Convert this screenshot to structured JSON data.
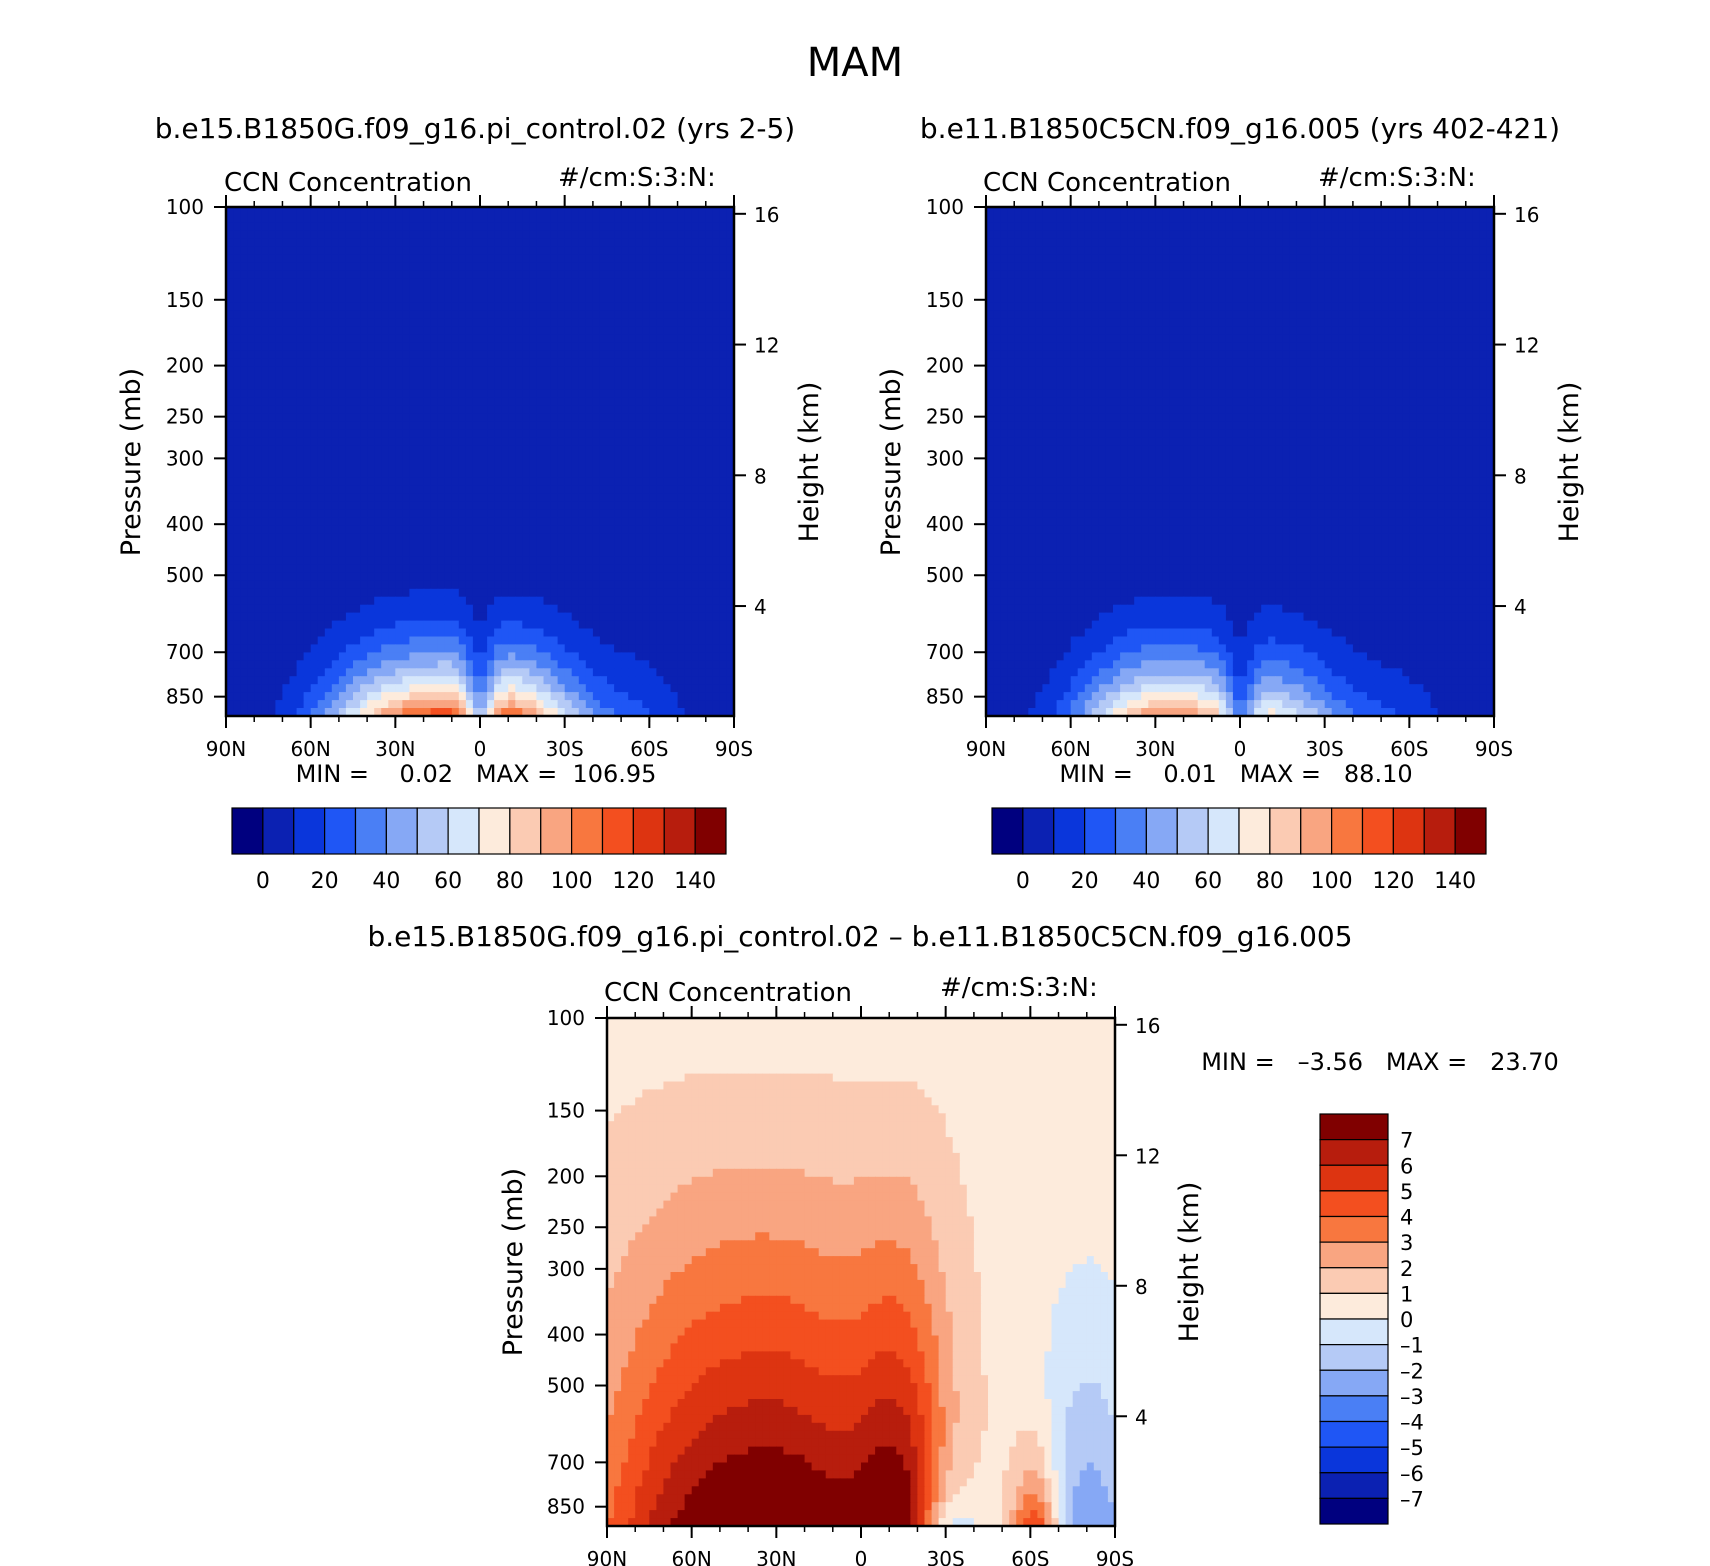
{
  "figure": {
    "title": "MAM"
  },
  "palette": {
    "diverging": [
      "#00007f",
      "#0b21b2",
      "#0a36db",
      "#1f56f5",
      "#4a7ff5",
      "#86a8f5",
      "#b5caf6",
      "#d6e7fb",
      "#fdebdc",
      "#fbcbb3",
      "#f9a581",
      "#f8773f",
      "#f34f1f",
      "#dd3411",
      "#b71d0d",
      "#800000"
    ]
  },
  "chart_data": [
    {
      "id": "left",
      "type": "contour",
      "run_title": "b.e15.B1850G.f09_g16.pi_control.02 (yrs 2-5)",
      "left_label": "CCN Concentration",
      "right_label": "#/cm:S:3:N:",
      "xlabel": "",
      "ylabel": "Pressure (mb)",
      "y2label": "Height (km)",
      "x_ticks": [
        "90N",
        "60N",
        "30N",
        "0",
        "30S",
        "60S",
        "90S"
      ],
      "y_ticks": [
        "100",
        "150",
        "200",
        "250",
        "300",
        "400",
        "500",
        "700",
        "850"
      ],
      "y2_ticks": [
        "16",
        "12",
        "8",
        "4"
      ],
      "ylim": [
        100,
        925
      ],
      "stats_text": "MIN =    0.02   MAX =  106.95",
      "min": 0.02,
      "max": 106.95,
      "colorbar": {
        "orientation": "horizontal",
        "labels": [
          "0",
          "20",
          "40",
          "60",
          "80",
          "100",
          "120",
          "140"
        ]
      },
      "field_profile": {
        "description": "low values aloft; maxima near 10N surface ~107",
        "peak": 106.95
      }
    },
    {
      "id": "right",
      "type": "contour",
      "run_title": "b.e11.B1850C5CN.f09_g16.005 (yrs 402-421)",
      "left_label": "CCN Concentration",
      "right_label": "#/cm:S:3:N:",
      "xlabel": "",
      "ylabel": "Pressure (mb)",
      "y2label": "Height (km)",
      "x_ticks": [
        "90N",
        "60N",
        "30N",
        "0",
        "30S",
        "60S",
        "90S"
      ],
      "y_ticks": [
        "100",
        "150",
        "200",
        "250",
        "300",
        "400",
        "500",
        "700",
        "850"
      ],
      "y2_ticks": [
        "16",
        "12",
        "8",
        "4"
      ],
      "ylim": [
        100,
        925
      ],
      "stats_text": "MIN =    0.01   MAX =   88.10",
      "min": 0.01,
      "max": 88.1,
      "colorbar": {
        "orientation": "horizontal",
        "labels": [
          "0",
          "20",
          "40",
          "60",
          "80",
          "100",
          "120",
          "140"
        ]
      },
      "field_profile": {
        "description": "low values aloft; maxima near 20N surface ~88",
        "peak": 88.1
      }
    },
    {
      "id": "diff",
      "type": "contour",
      "run_title": "b.e15.B1850G.f09_g16.pi_control.02 – b.e11.B1850C5CN.f09_g16.005",
      "left_label": "CCN Concentration",
      "right_label": "#/cm:S:3:N:",
      "xlabel": "",
      "ylabel": "Pressure (mb)",
      "y2label": "Height (km)",
      "x_ticks": [
        "90N",
        "60N",
        "30N",
        "0",
        "30S",
        "60S",
        "90S"
      ],
      "y_ticks": [
        "100",
        "150",
        "200",
        "250",
        "300",
        "400",
        "500",
        "700",
        "850"
      ],
      "y2_ticks": [
        "16",
        "12",
        "8",
        "4"
      ],
      "ylim": [
        100,
        925
      ],
      "stats_text": "MIN =   –3.56   MAX =   23.70",
      "min": -3.56,
      "max": 23.7,
      "colorbar": {
        "orientation": "vertical",
        "labels": [
          "7",
          "6",
          "5",
          "4",
          "3",
          "2",
          "1",
          "0",
          "–1",
          "–2",
          "–3",
          "–4",
          "–5",
          "–6",
          "–7"
        ]
      },
      "field_profile": {
        "description": "positive differences 0-1 aloft, >7 over 30N-30S below 500mb, negative near 70S-90S",
        "peak": 23.7
      }
    }
  ]
}
